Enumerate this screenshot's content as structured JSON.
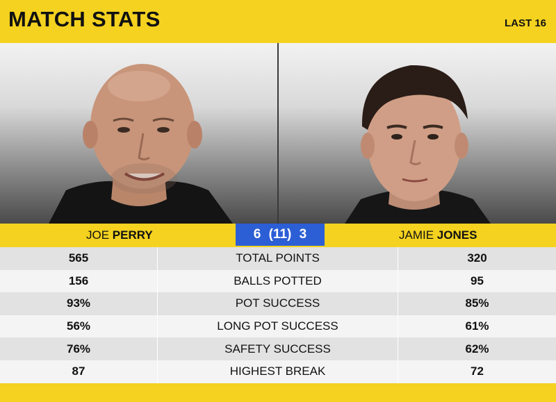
{
  "header": {
    "title": "MATCH STATS",
    "round": "LAST 16"
  },
  "players": {
    "left": {
      "first": "JOE",
      "last": "PERRY"
    },
    "right": {
      "first": "JAMIE",
      "last": "JONES"
    }
  },
  "score": "6 (11) 3",
  "stats": [
    {
      "label": "TOTAL POINTS",
      "left": "565",
      "right": "320"
    },
    {
      "label": "BALLS POTTED",
      "left": "156",
      "right": "95"
    },
    {
      "label": "POT SUCCESS",
      "left": "93%",
      "right": "85%"
    },
    {
      "label": "LONG POT SUCCESS",
      "left": "56%",
      "right": "61%"
    },
    {
      "label": "SAFETY SUCCESS",
      "left": "76%",
      "right": "62%"
    },
    {
      "label": "HIGHEST BREAK",
      "left": "87",
      "right": "72"
    }
  ],
  "colors": {
    "accent": "#f4d21f",
    "score_bg": "#2c5fd6"
  }
}
